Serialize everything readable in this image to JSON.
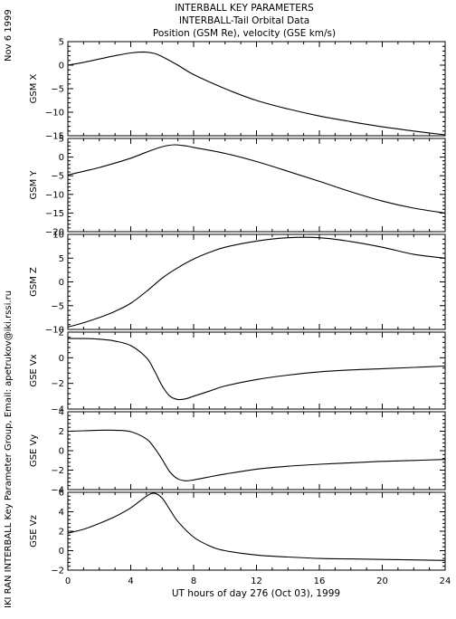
{
  "header": {
    "title_lines": [
      "INTERBALL KEY PARAMETERS",
      "INTERBALL-Tail Orbital Data",
      "Position (GSM Re), velocity (GSE km/s)"
    ],
    "date": "Nov  6 1999",
    "credit": "IKI RAN INTERBALL Key Parameter Group, Email: apetrukov@iki.rssi.ru"
  },
  "chart_data": {
    "type": "line",
    "xlabel": "UT hours of day 276 (Oct 03), 1999",
    "xlim": [
      0,
      24
    ],
    "xticks": [
      0,
      4,
      8,
      12,
      16,
      20,
      24
    ],
    "panels": [
      {
        "ylabel": "GSM X",
        "ylim": [
          -15,
          5
        ],
        "yticks": [
          5,
          0,
          -5,
          -10,
          -15
        ],
        "x": [
          0,
          1,
          2,
          3,
          4,
          4.8,
          5.5,
          6,
          7,
          8,
          10,
          12,
          14,
          16,
          18,
          20,
          22,
          24
        ],
        "y": [
          0,
          0.6,
          1.3,
          2.0,
          2.6,
          2.8,
          2.5,
          1.8,
          0,
          -2.0,
          -5.0,
          -7.5,
          -9.3,
          -10.8,
          -12.0,
          -13.1,
          -14.0,
          -14.8
        ]
      },
      {
        "ylabel": "GSM Y",
        "ylim": [
          -20,
          5
        ],
        "yticks": [
          5,
          0,
          -5,
          -10,
          -15,
          -20
        ],
        "x": [
          0,
          1,
          2,
          3,
          4,
          5,
          6,
          6.8,
          7.5,
          8,
          10,
          12,
          14,
          16,
          18,
          20,
          22,
          24
        ],
        "y": [
          -4.8,
          -3.8,
          -2.8,
          -1.6,
          -0.3,
          1.3,
          2.8,
          3.3,
          3.0,
          2.6,
          1.0,
          -1.2,
          -3.8,
          -6.5,
          -9.3,
          -11.8,
          -13.7,
          -15.0
        ]
      },
      {
        "ylabel": "GSM Z",
        "ylim": [
          -10,
          10
        ],
        "yticks": [
          10,
          5,
          0,
          -5,
          -10
        ],
        "x": [
          0,
          1,
          2,
          3,
          4,
          5,
          6,
          7,
          8,
          9,
          10,
          12,
          14,
          16,
          18,
          20,
          22,
          24
        ],
        "y": [
          -9.5,
          -8.6,
          -7.5,
          -6.2,
          -4.5,
          -2.0,
          0.8,
          3.0,
          4.8,
          6.2,
          7.3,
          8.6,
          9.3,
          9.3,
          8.5,
          7.3,
          5.8,
          5.0
        ]
      },
      {
        "ylabel": "GSE Vx",
        "ylim": [
          -4,
          2
        ],
        "yticks": [
          2,
          0,
          -2,
          -4
        ],
        "x": [
          0,
          1,
          2,
          3,
          4,
          5,
          5.5,
          6,
          6.5,
          7,
          7.5,
          8,
          9,
          10,
          12,
          14,
          16,
          18,
          20,
          22,
          24
        ],
        "y": [
          1.5,
          1.5,
          1.45,
          1.3,
          0.95,
          0.0,
          -1.0,
          -2.2,
          -3.0,
          -3.25,
          -3.2,
          -3.0,
          -2.6,
          -2.2,
          -1.7,
          -1.35,
          -1.1,
          -0.95,
          -0.85,
          -0.75,
          -0.65
        ]
      },
      {
        "ylabel": "GSE Vy",
        "ylim": [
          -4,
          4
        ],
        "yticks": [
          4,
          2,
          0,
          -2,
          -4
        ],
        "x": [
          0,
          1,
          2,
          3,
          4,
          5,
          5.5,
          6,
          6.5,
          7,
          7.5,
          8,
          9,
          10,
          12,
          14,
          16,
          18,
          20,
          22,
          24
        ],
        "y": [
          2.0,
          2.05,
          2.1,
          2.1,
          1.95,
          1.2,
          0.3,
          -0.9,
          -2.2,
          -2.9,
          -3.1,
          -3.0,
          -2.7,
          -2.4,
          -1.9,
          -1.6,
          -1.4,
          -1.25,
          -1.1,
          -1.0,
          -0.9
        ]
      },
      {
        "ylabel": "GSE Vz",
        "ylim": [
          -2,
          6
        ],
        "yticks": [
          6,
          4,
          2,
          0,
          -2
        ],
        "x": [
          0,
          1,
          2,
          3,
          4,
          5,
          5.5,
          6,
          6.5,
          7,
          8,
          9,
          10,
          12,
          14,
          16,
          18,
          20,
          22,
          24
        ],
        "y": [
          1.8,
          2.2,
          2.8,
          3.5,
          4.4,
          5.6,
          5.9,
          5.4,
          4.2,
          3.0,
          1.4,
          0.5,
          0.0,
          -0.45,
          -0.65,
          -0.8,
          -0.85,
          -0.9,
          -0.95,
          -1.0
        ]
      }
    ]
  }
}
